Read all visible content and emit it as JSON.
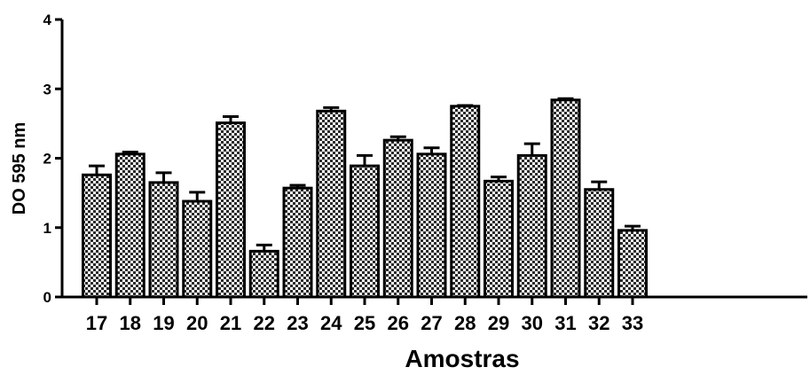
{
  "chart_data": {
    "type": "bar",
    "title": "",
    "xlabel": "Amostras",
    "ylabel": "DO 595 nm",
    "ylim": [
      0,
      4
    ],
    "yticks": [
      0,
      1,
      2,
      3,
      4
    ],
    "grid": false,
    "legend": "none",
    "categories": [
      "17",
      "18",
      "19",
      "20",
      "21",
      "22",
      "23",
      "24",
      "25",
      "26",
      "27",
      "28",
      "29",
      "30",
      "31",
      "32",
      "33"
    ],
    "values": [
      1.76,
      2.06,
      1.65,
      1.38,
      2.51,
      0.66,
      1.57,
      2.68,
      1.89,
      2.26,
      2.06,
      2.75,
      1.67,
      2.04,
      2.84,
      1.55,
      0.96
    ],
    "errors": [
      0.13,
      0.03,
      0.14,
      0.13,
      0.09,
      0.09,
      0.04,
      0.05,
      0.15,
      0.05,
      0.09,
      0.01,
      0.06,
      0.17,
      0.02,
      0.11,
      0.06
    ],
    "colors": {
      "bar_fill": "#4a4a4a",
      "axis": "#000000"
    }
  }
}
